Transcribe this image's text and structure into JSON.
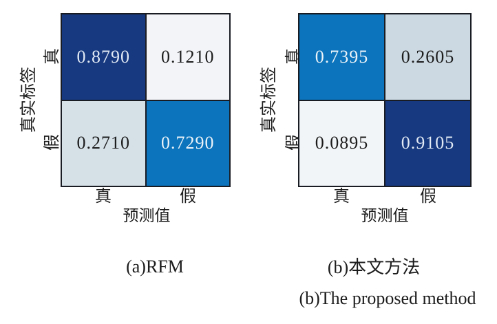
{
  "colors": {
    "cell_dark_navy": "#17397f",
    "cell_medium_blue": "#0b74bc",
    "cell_light_blue_gray": "#d5e0e7",
    "cell_light_blue_gray_b": "#ccd9e2",
    "cell_very_light": "#f2f4f8",
    "cell_very_light_b": "#f2f5f8",
    "grid_border": "#1a1c24",
    "text_on_light": "#1c1c1c",
    "text_on_dark": "#e7eef7"
  },
  "axis": {
    "y_label": "真实标签",
    "x_label": "预测值",
    "row_ticks": [
      "真",
      "假"
    ],
    "col_ticks": [
      "真",
      "假"
    ]
  },
  "matrices": [
    {
      "caption": "(a)RFM",
      "cells": [
        {
          "value": "0.8790",
          "bg": "#17397f",
          "fg": "#e2eaf5"
        },
        {
          "value": "0.1210",
          "bg": "#f2f4f8",
          "fg": "#1c1c1c"
        },
        {
          "value": "0.2710",
          "bg": "#d5e0e7",
          "fg": "#1c1c1c"
        },
        {
          "value": "0.7290",
          "bg": "#0b74bc",
          "fg": "#ecf3f9"
        }
      ]
    },
    {
      "caption": "(b)本文方法",
      "caption_en": "(b)The proposed method",
      "cells": [
        {
          "value": "0.7395",
          "bg": "#0b74bc",
          "fg": "#ecf3f9"
        },
        {
          "value": "0.2605",
          "bg": "#ccd9e2",
          "fg": "#1c1c1c"
        },
        {
          "value": "0.0895",
          "bg": "#f2f5f8",
          "fg": "#1c1c1c"
        },
        {
          "value": "0.9105",
          "bg": "#17397f",
          "fg": "#e2eaf5"
        }
      ]
    }
  ],
  "chart_data": [
    {
      "type": "heatmap",
      "title": "(a)RFM",
      "xlabel": "预测值",
      "ylabel": "真实标签",
      "x_categories": [
        "真",
        "假"
      ],
      "y_categories": [
        "真",
        "假"
      ],
      "values": [
        [
          0.879,
          0.121
        ],
        [
          0.271,
          0.729
        ]
      ],
      "value_range": [
        0,
        1
      ],
      "colormap": "Blues (higher = darker blue)",
      "grid": true,
      "legend": "none"
    },
    {
      "type": "heatmap",
      "title": "(b)本文方法 / (b)The proposed method",
      "xlabel": "预测值",
      "ylabel": "真实标签",
      "x_categories": [
        "真",
        "假"
      ],
      "y_categories": [
        "真",
        "假"
      ],
      "values": [
        [
          0.7395,
          0.2605
        ],
        [
          0.0895,
          0.9105
        ]
      ],
      "value_range": [
        0,
        1
      ],
      "colormap": "Blues (higher = darker blue)",
      "grid": true,
      "legend": "none"
    }
  ]
}
